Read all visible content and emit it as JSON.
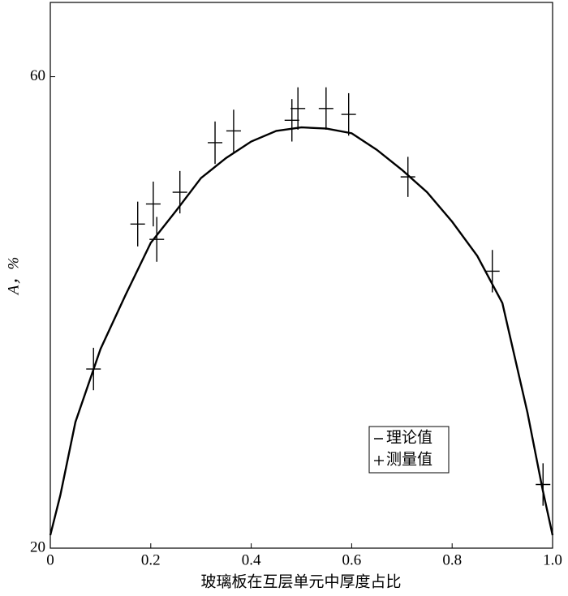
{
  "chart_data": {
    "type": "line",
    "xlabel": "玻璃板在互层单元中厚度占比",
    "ylabel": "A，%",
    "xlim": [
      0,
      1
    ],
    "ylim": [
      20,
      66.3
    ],
    "xticks": [
      0,
      0.2,
      0.4,
      0.6,
      0.8,
      {
        "value": 1,
        "label": "1.0"
      }
    ],
    "yticks": [
      20,
      60
    ],
    "legend": "lower right",
    "series": [
      {
        "name": "理论值",
        "color": "#000000",
        "x": [
          0,
          0.02,
          0.05,
          0.1,
          0.15,
          0.2,
          0.25,
          0.3,
          0.35,
          0.4,
          0.45,
          0.5,
          0.55,
          0.6,
          0.65,
          0.7,
          0.75,
          0.8,
          0.85,
          0.9,
          0.95,
          0.98,
          1.0
        ],
        "values": [
          21.1,
          24.5,
          30.7,
          36.9,
          41.5,
          45.9,
          48.6,
          51.4,
          53.1,
          54.5,
          55.4,
          55.7,
          55.6,
          55.2,
          53.8,
          52.1,
          50.2,
          47.7,
          44.8,
          40.8,
          31.5,
          25.0,
          21.1
        ]
      },
      {
        "name": "测量值",
        "color": "#000000",
        "x": [
          0.086,
          0.174,
          0.205,
          0.212,
          0.258,
          0.328,
          0.365,
          0.481,
          0.493,
          0.549,
          0.594,
          0.712,
          0.88,
          0.981
        ],
        "values": [
          35.2,
          47.5,
          49.2,
          46.2,
          50.2,
          54.4,
          55.4,
          56.3,
          57.3,
          57.3,
          56.8,
          51.5,
          43.5,
          25.4
        ],
        "errors": [
          1.8,
          1.9,
          1.9,
          1.9,
          1.8,
          1.8,
          1.8,
          1.8,
          1.8,
          1.8,
          1.8,
          1.7,
          1.8,
          1.8
        ]
      }
    ]
  }
}
